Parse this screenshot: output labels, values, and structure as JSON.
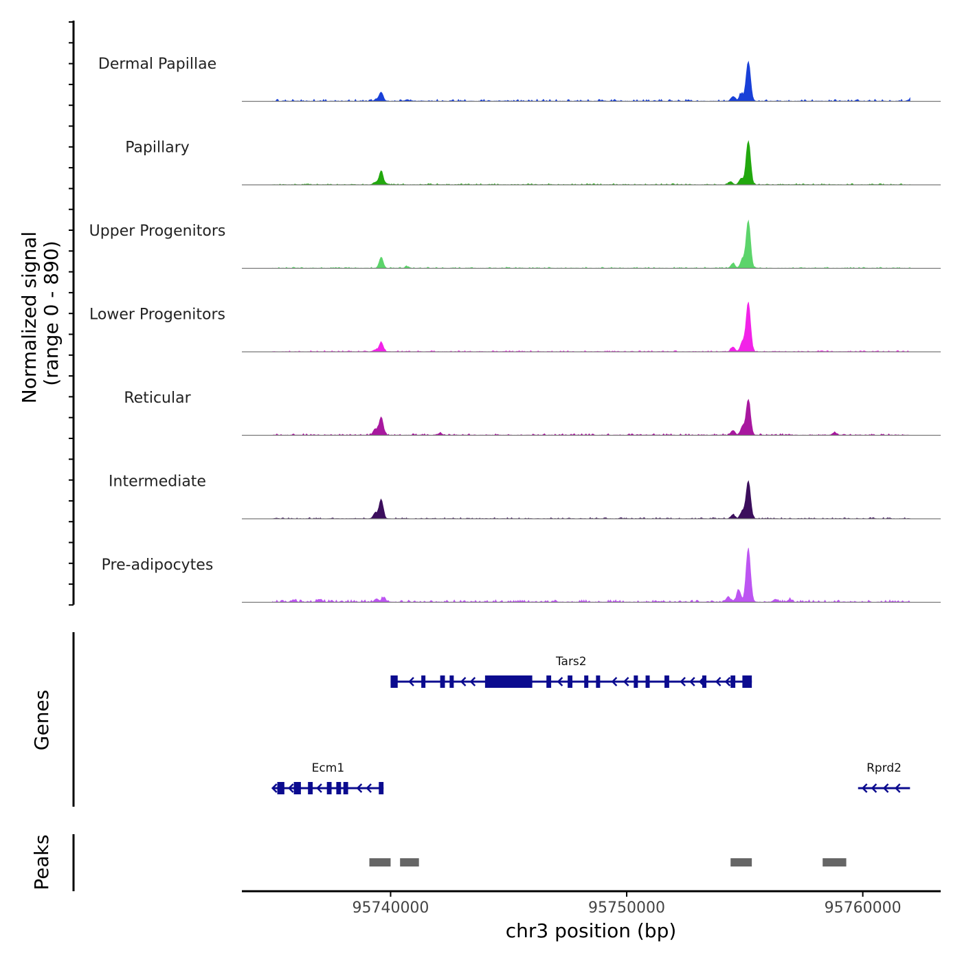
{
  "chart_data": {
    "type": "area",
    "title": "",
    "region": "chr3",
    "xlabel": "chr3 position (bp)",
    "ylabel": "Normalized signal",
    "ylabel_range": "(range 0 - 890)",
    "ylim": [
      0,
      890
    ],
    "xlim": [
      95733700,
      95763300
    ],
    "x_ticks": [
      95740000,
      95750000,
      95760000
    ],
    "x_tick_labels": [
      "95740000",
      "95750000",
      "95760000"
    ],
    "panel_labels": {
      "genes": "Genes",
      "peaks": "Peaks"
    },
    "series": [
      {
        "name": "Dermal Papillae",
        "color": "#1940d8",
        "noise": 0.05,
        "peaks": [
          {
            "x": 95739600,
            "h": 0.22
          },
          {
            "x": 95739400,
            "h": 0.04
          },
          {
            "x": 95740700,
            "h": 0.04
          },
          {
            "x": 95754500,
            "h": 0.12
          },
          {
            "x": 95754850,
            "h": 0.18
          },
          {
            "x": 95755150,
            "h": 1.0
          },
          {
            "x": 95762000,
            "h": 0.05
          }
        ]
      },
      {
        "name": "Papillary",
        "color": "#22a80e",
        "noise": 0.03,
        "peaks": [
          {
            "x": 95739600,
            "h": 0.35
          },
          {
            "x": 95739350,
            "h": 0.06
          },
          {
            "x": 95754400,
            "h": 0.08
          },
          {
            "x": 95754850,
            "h": 0.16
          },
          {
            "x": 95755150,
            "h": 1.1
          }
        ]
      },
      {
        "name": "Upper Progenitors",
        "color": "#5cd46b",
        "noise": 0.03,
        "peaks": [
          {
            "x": 95739600,
            "h": 0.27
          },
          {
            "x": 95740700,
            "h": 0.04
          },
          {
            "x": 95754500,
            "h": 0.12
          },
          {
            "x": 95754900,
            "h": 0.22
          },
          {
            "x": 95755150,
            "h": 1.2
          }
        ]
      },
      {
        "name": "Lower Progenitors",
        "color": "#f222e8",
        "noise": 0.03,
        "peaks": [
          {
            "x": 95739600,
            "h": 0.24
          },
          {
            "x": 95739350,
            "h": 0.05
          },
          {
            "x": 95754500,
            "h": 0.12
          },
          {
            "x": 95754900,
            "h": 0.25
          },
          {
            "x": 95755150,
            "h": 1.25
          }
        ]
      },
      {
        "name": "Reticular",
        "color": "#a8189f",
        "noise": 0.04,
        "peaks": [
          {
            "x": 95739600,
            "h": 0.46
          },
          {
            "x": 95739350,
            "h": 0.16
          },
          {
            "x": 95742100,
            "h": 0.05
          },
          {
            "x": 95754500,
            "h": 0.12
          },
          {
            "x": 95754900,
            "h": 0.2
          },
          {
            "x": 95755150,
            "h": 0.9
          },
          {
            "x": 95758800,
            "h": 0.06
          }
        ]
      },
      {
        "name": "Intermediate",
        "color": "#3b0e5c",
        "noise": 0.03,
        "peaks": [
          {
            "x": 95739600,
            "h": 0.48
          },
          {
            "x": 95739350,
            "h": 0.14
          },
          {
            "x": 95754500,
            "h": 0.1
          },
          {
            "x": 95754900,
            "h": 0.18
          },
          {
            "x": 95755150,
            "h": 0.95
          }
        ]
      },
      {
        "name": "Pre-adipocytes",
        "color": "#bd55f2",
        "noise": 0.06,
        "peaks": [
          {
            "x": 95735900,
            "h": 0.06
          },
          {
            "x": 95737000,
            "h": 0.07
          },
          {
            "x": 95739400,
            "h": 0.08
          },
          {
            "x": 95739700,
            "h": 0.1
          },
          {
            "x": 95754300,
            "h": 0.14
          },
          {
            "x": 95754750,
            "h": 0.3
          },
          {
            "x": 95755150,
            "h": 1.35
          },
          {
            "x": 95756300,
            "h": 0.07
          },
          {
            "x": 95756900,
            "h": 0.06
          }
        ]
      }
    ],
    "genes": [
      {
        "name": "Tars2",
        "color": "#0b0b8f",
        "start": 95740000,
        "end": 95755300,
        "row": 0,
        "exons": [
          [
            95740000,
            95740300
          ],
          [
            95741300,
            95741450
          ],
          [
            95742100,
            95742300
          ],
          [
            95742500,
            95742650
          ],
          [
            95744000,
            95746000
          ],
          [
            95746600,
            95746800
          ],
          [
            95747500,
            95747700
          ],
          [
            95748200,
            95748350
          ],
          [
            95748700,
            95748850
          ],
          [
            95750300,
            95750450
          ],
          [
            95750800,
            95750950
          ],
          [
            95751600,
            95751800
          ],
          [
            95753200,
            95753350
          ],
          [
            95754400,
            95754600
          ],
          [
            95754900,
            95755300
          ]
        ],
        "arrows": [
          95740800,
          95743000,
          95743400,
          95747100,
          95749400,
          95749900,
          95752300,
          95752700,
          95753100,
          95753800,
          95754200
        ]
      },
      {
        "name": "Ecm1",
        "color": "#0b0b8f",
        "start": 95735000,
        "end": 95739700,
        "row": 1,
        "exons": [
          [
            95735200,
            95735500
          ],
          [
            95735900,
            95736200
          ],
          [
            95736500,
            95736700
          ],
          [
            95737300,
            95737500
          ],
          [
            95737700,
            95737900
          ],
          [
            95738000,
            95738200
          ],
          [
            95739500,
            95739700
          ]
        ],
        "arrows": [
          95735000,
          95735700,
          95736900,
          95738600,
          95739000
        ]
      },
      {
        "name": "Rprd2",
        "color": "#0b0b8f",
        "start": 95759800,
        "end": 95762000,
        "row": 1,
        "exons": [],
        "arrows": [
          95760000,
          95760400,
          95760900,
          95761400
        ]
      }
    ],
    "peaks": [
      {
        "start": 95739100,
        "end": 95740000
      },
      {
        "start": 95740400,
        "end": 95741200
      },
      {
        "start": 95754400,
        "end": 95755300
      },
      {
        "start": 95758300,
        "end": 95759300
      }
    ],
    "peak_color": "#666666"
  }
}
